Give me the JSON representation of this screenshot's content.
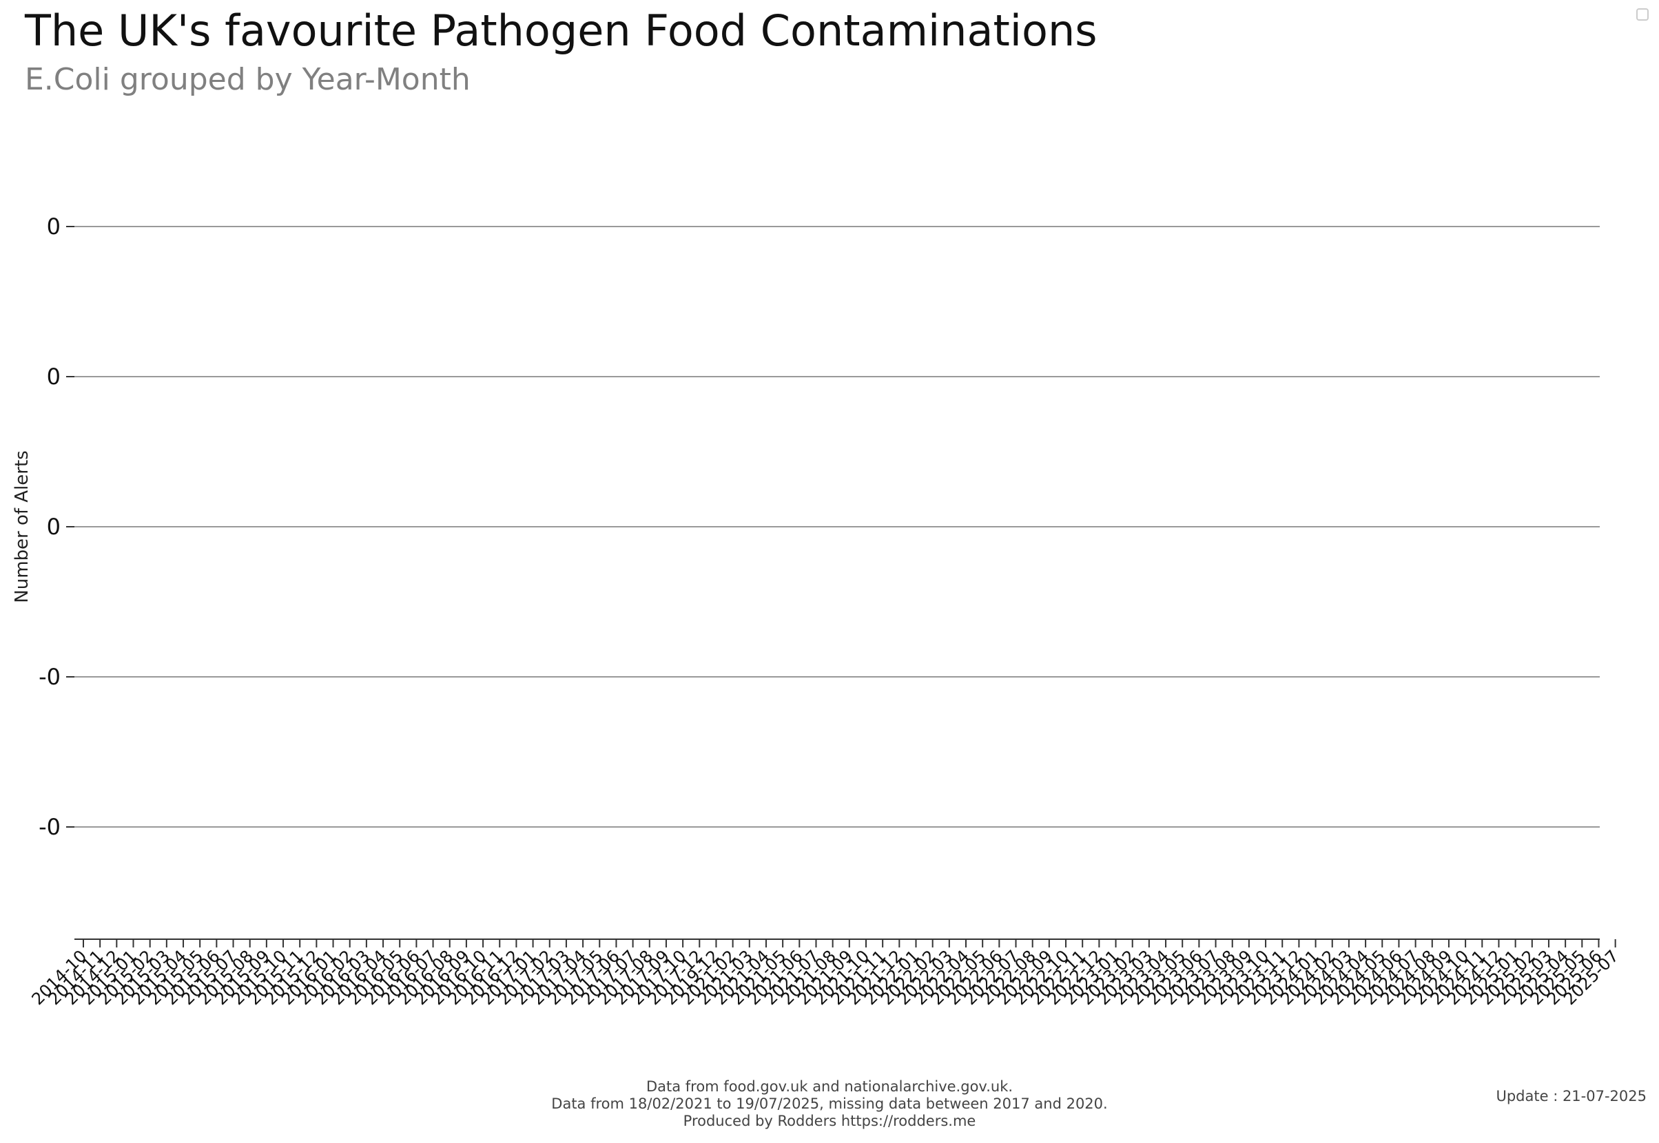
{
  "header": {
    "title": "The UK's favourite Pathogen Food Contaminations",
    "subtitle": "E.Coli grouped by Year-Month"
  },
  "footer": {
    "line1": "Data from food.gov.uk and nationalarchive.gov.uk.",
    "line2": "Data from 18/02/2021 to 19/07/2025, missing data between 2017 and 2020.",
    "line3": "Produced by Rodders https://rodders.me",
    "update": "Update : 21-07-2025"
  },
  "chart_data": {
    "type": "bar",
    "ylabel": "Number of Alerts",
    "xlabel": "",
    "grid": true,
    "y_tick_labels": [
      "0",
      "0",
      "0",
      "-0",
      "-0"
    ],
    "categories": [
      "2014-10",
      "2014-11",
      "2014-12",
      "2015-01",
      "2015-02",
      "2015-03",
      "2015-04",
      "2015-05",
      "2015-06",
      "2015-07",
      "2015-08",
      "2015-09",
      "2015-10",
      "2015-11",
      "2015-12",
      "2016-01",
      "2016-02",
      "2016-03",
      "2016-04",
      "2016-05",
      "2016-06",
      "2016-07",
      "2016-08",
      "2016-09",
      "2016-10",
      "2016-11",
      "2016-12",
      "2017-01",
      "2017-02",
      "2017-03",
      "2017-04",
      "2017-05",
      "2017-06",
      "2017-07",
      "2017-08",
      "2017-09",
      "2017-10",
      "2017-12",
      "2019-12",
      "2021-02",
      "2021-03",
      "2021-04",
      "2021-05",
      "2021-06",
      "2021-07",
      "2021-08",
      "2021-09",
      "2021-10",
      "2021-11",
      "2021-12",
      "2022-01",
      "2022-02",
      "2022-03",
      "2022-04",
      "2022-05",
      "2022-06",
      "2022-07",
      "2022-08",
      "2022-09",
      "2022-10",
      "2022-11",
      "2022-12",
      "2023-01",
      "2023-02",
      "2023-03",
      "2023-04",
      "2023-05",
      "2023-06",
      "2023-07",
      "2023-08",
      "2023-09",
      "2023-10",
      "2023-11",
      "2023-12",
      "2024-01",
      "2024-02",
      "2024-03",
      "2024-04",
      "2024-05",
      "2024-06",
      "2024-07",
      "2024-08",
      "2024-09",
      "2024-10",
      "2024-11",
      "2024-12",
      "2025-01",
      "2025-02",
      "2025-03",
      "2025-04",
      "2025-05",
      "2025-06",
      "2025-07"
    ],
    "values": [
      0,
      0,
      0,
      0,
      0,
      0,
      0,
      0,
      0,
      0,
      0,
      0,
      0,
      0,
      0,
      0,
      0,
      0,
      0,
      0,
      0,
      0,
      0,
      0,
      0,
      0,
      0,
      0,
      0,
      0,
      0,
      0,
      0,
      0,
      0,
      0,
      0,
      0,
      0,
      0,
      0,
      0,
      0,
      0,
      0,
      0,
      0,
      0,
      0,
      0,
      0,
      0,
      0,
      0,
      0,
      0,
      0,
      0,
      0,
      0,
      0,
      0,
      0,
      0,
      0,
      0,
      0,
      0,
      0,
      0,
      0,
      0,
      0,
      0,
      0,
      0,
      0,
      0,
      0,
      0,
      0,
      0,
      0,
      0,
      0,
      0,
      0,
      0,
      0,
      0,
      0,
      0,
      0
    ],
    "colors": {
      "grid": "#999999",
      "axis": "#333333",
      "tick_text": "#111111"
    }
  }
}
